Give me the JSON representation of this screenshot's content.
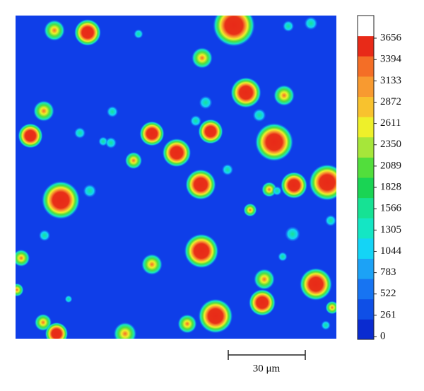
{
  "colorbar": {
    "ticks": [
      0,
      261,
      522,
      783,
      1044,
      1305,
      1566,
      1828,
      2089,
      2350,
      2611,
      2872,
      3133,
      3394,
      3656
    ],
    "colors": [
      "#0a2bd0",
      "#0f4fe6",
      "#1774f2",
      "#1ca2f6",
      "#14d4f6",
      "#14e6c4",
      "#16e294",
      "#1ad454",
      "#52de3c",
      "#a6e63a",
      "#eef02a",
      "#f8c22e",
      "#f89a30",
      "#f46e26",
      "#e82a18",
      "#ffffff"
    ]
  },
  "scale_bar": {
    "label": "30 μm"
  }
}
